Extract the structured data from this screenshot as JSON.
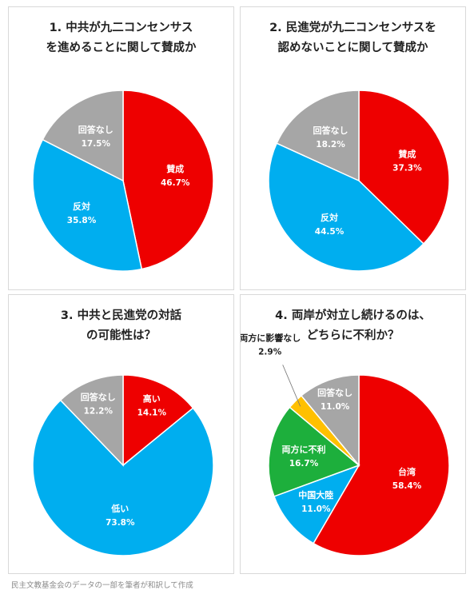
{
  "colors": {
    "red": "#EE0000",
    "blue": "#00AEEF",
    "gray": "#A6A6A6",
    "green": "#1DAF3C",
    "yellow": "#FFC000"
  },
  "caption": "民主文教基金会のデータの一部を筆者が和訳して作成",
  "chart_data": [
    {
      "type": "pie",
      "title": [
        "1. 中共が九二コンセンサス",
        "を進めることに関して賛成か"
      ],
      "slices": [
        {
          "label": "賛成",
          "value": 46.7,
          "text": "46.7%",
          "color": "#EE0000"
        },
        {
          "label": "反対",
          "value": 35.8,
          "text": "35.8%",
          "color": "#00AEEF"
        },
        {
          "label": "回答なし",
          "value": 17.5,
          "text": "17.5%",
          "color": "#A6A6A6"
        }
      ]
    },
    {
      "type": "pie",
      "title": [
        "2. 民進党が九二コンセンサスを",
        "認めないことに関して賛成か"
      ],
      "slices": [
        {
          "label": "賛成",
          "value": 37.3,
          "text": "37.3%",
          "color": "#EE0000"
        },
        {
          "label": "反対",
          "value": 44.5,
          "text": "44.5%",
          "color": "#00AEEF"
        },
        {
          "label": "回答なし",
          "value": 18.2,
          "text": "18.2%",
          "color": "#A6A6A6"
        }
      ]
    },
    {
      "type": "pie",
      "title": [
        "3. 中共と民進党の対話",
        "の可能性は？"
      ],
      "slices": [
        {
          "label": "高い",
          "value": 14.1,
          "text": "14.1%",
          "color": "#EE0000"
        },
        {
          "label": "低い",
          "value": 73.8,
          "text": "73.8%",
          "color": "#00AEEF"
        },
        {
          "label": "回答なし",
          "value": 12.2,
          "text": "12.2%",
          "color": "#A6A6A6"
        }
      ]
    },
    {
      "type": "pie",
      "title": [
        "4. 両岸が対立し続けるのは、",
        "どちらに不利か？"
      ],
      "slices": [
        {
          "label": "台湾",
          "value": 58.4,
          "text": "58.4%",
          "color": "#EE0000"
        },
        {
          "label": "中国大陸",
          "value": 11.0,
          "text": "11.0%",
          "color": "#00AEEF"
        },
        {
          "label": "両方に不利",
          "value": 16.7,
          "text": "16.7%",
          "color": "#1DAF3C"
        },
        {
          "label": "両方に影響なし",
          "value": 2.9,
          "text": "2.9%",
          "color": "#FFC000"
        },
        {
          "label": "回答なし",
          "value": 11.0,
          "text": "11.0%",
          "color": "#A6A6A6"
        }
      ]
    }
  ]
}
